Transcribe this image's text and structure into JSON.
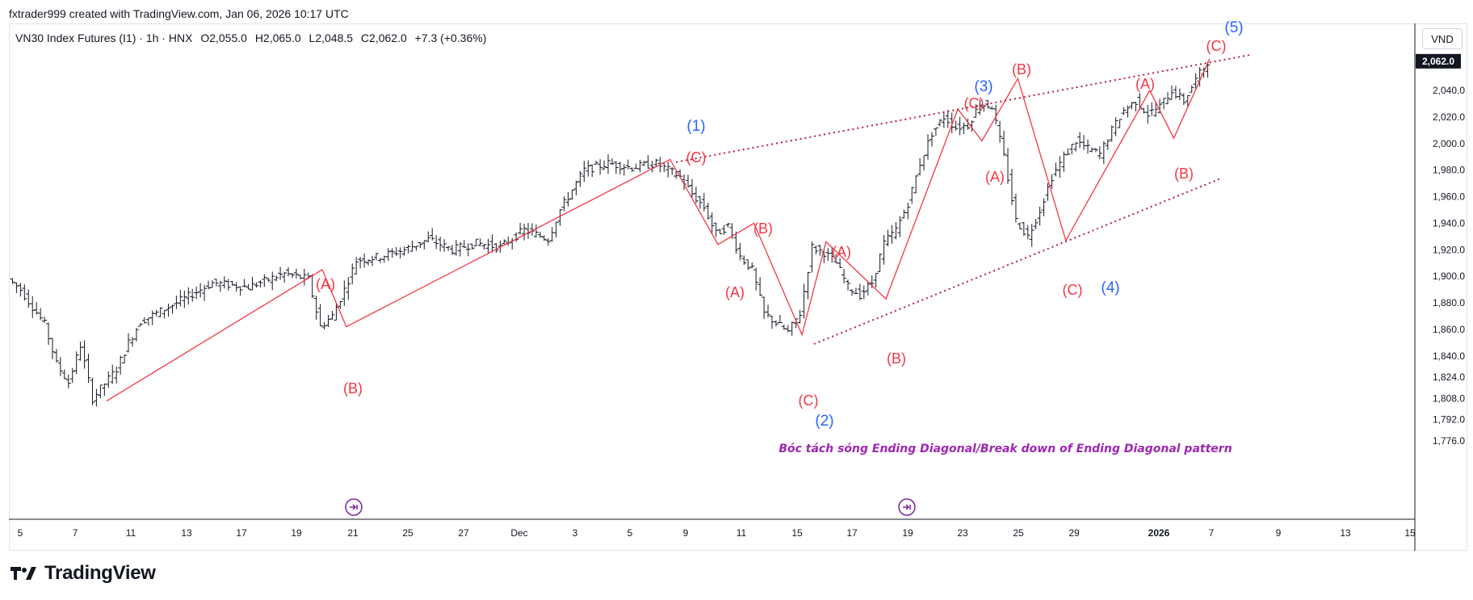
{
  "header": {
    "creator_line": "fxtrader999 created with TradingView.com, Jan 06, 2026 10:17 UTC"
  },
  "legend": {
    "symbol": "VN30 Index Futures (I1) · 1h · HNX",
    "open": "O2,055.0",
    "high": "H2,065.0",
    "low": "L2,048.5",
    "close": "C2,062.0",
    "change": "+7.3 (+0.36%)"
  },
  "currency": "VND",
  "last_price": "2,062.0",
  "footer": {
    "brand": "TradingView"
  },
  "colors": {
    "candle": "#131722",
    "wave_red": "#f23645",
    "wave_blue": "#2962ff",
    "trend_dotted": "#b71c3c",
    "annotation": "#9c27b0",
    "price_label_bg": "#131722"
  },
  "chart_data": {
    "type": "ohlc",
    "title": "VN30 Index Futures (I1) · 1h · HNX",
    "y_axis": {
      "ticks": [
        1776.0,
        1792.0,
        1808.0,
        1824.0,
        1840.0,
        1860.0,
        1880.0,
        1900.0,
        1920.0,
        1940.0,
        1960.0,
        1980.0,
        2000.0,
        2020.0,
        2040.0
      ],
      "tick_labels": [
        "1,776.0",
        "1,792.0",
        "1,808.0",
        "1,824.0",
        "1,840.0",
        "1,860.0",
        "1,880.0",
        "1,900.0",
        "1,920.0",
        "1,940.0",
        "1,960.0",
        "1,980.0",
        "2,000.0",
        "2,020.0",
        "2,040.0"
      ],
      "position": "right"
    },
    "x_axis": {
      "ticks": [
        "5",
        "7",
        "11",
        "13",
        "17",
        "19",
        "21",
        "25",
        "27",
        "Dec",
        "3",
        "5",
        "9",
        "11",
        "15",
        "17",
        "19",
        "23",
        "25",
        "29",
        "2026",
        "7",
        "9",
        "13",
        "15"
      ]
    },
    "price_path": [
      [
        0,
        1898
      ],
      [
        1,
        1890
      ],
      [
        3,
        1864
      ],
      [
        4,
        1834
      ],
      [
        5,
        1820
      ],
      [
        6,
        1848
      ],
      [
        7,
        1808
      ],
      [
        9,
        1830
      ],
      [
        10,
        1850
      ],
      [
        11,
        1866
      ],
      [
        14,
        1880
      ],
      [
        17,
        1895
      ],
      [
        20,
        1892
      ],
      [
        23,
        1902
      ],
      [
        25,
        1898
      ],
      [
        26,
        1862
      ],
      [
        27,
        1870
      ],
      [
        28,
        1890
      ],
      [
        29,
        1912
      ],
      [
        31,
        1915
      ],
      [
        33,
        1920
      ],
      [
        35,
        1928
      ],
      [
        37,
        1920
      ],
      [
        39,
        1925
      ],
      [
        41,
        1922
      ],
      [
        43,
        1935
      ],
      [
        45,
        1928
      ],
      [
        46,
        1950
      ],
      [
        47,
        1965
      ],
      [
        48,
        1980
      ],
      [
        50,
        1985
      ],
      [
        52,
        1982
      ],
      [
        54,
        1985
      ],
      [
        55,
        1980
      ],
      [
        56,
        1975
      ],
      [
        57,
        1962
      ],
      [
        58,
        1952
      ],
      [
        59,
        1932
      ],
      [
        60,
        1938
      ],
      [
        61,
        1915
      ],
      [
        62,
        1905
      ],
      [
        63,
        1872
      ],
      [
        64,
        1865
      ],
      [
        65,
        1858
      ],
      [
        66,
        1872
      ],
      [
        67,
        1922
      ],
      [
        68,
        1918
      ],
      [
        69,
        1910
      ],
      [
        70,
        1892
      ],
      [
        71,
        1886
      ],
      [
        72,
        1895
      ],
      [
        73,
        1925
      ],
      [
        74,
        1935
      ],
      [
        75,
        1955
      ],
      [
        76,
        1985
      ],
      [
        77,
        2008
      ],
      [
        78,
        2020
      ],
      [
        79,
        2012
      ],
      [
        80,
        2014
      ],
      [
        81,
        2030
      ],
      [
        82,
        2028
      ],
      [
        83,
        1990
      ],
      [
        84,
        1942
      ],
      [
        85,
        1930
      ],
      [
        86,
        1950
      ],
      [
        87,
        1975
      ],
      [
        88,
        1990
      ],
      [
        89,
        2002
      ],
      [
        90,
        1996
      ],
      [
        91,
        1992
      ],
      [
        92,
        2010
      ],
      [
        93,
        2025
      ],
      [
        94,
        2032
      ],
      [
        95,
        2022
      ],
      [
        96,
        2028
      ],
      [
        97,
        2040
      ],
      [
        98,
        2032
      ],
      [
        99,
        2048
      ],
      [
        100,
        2062
      ]
    ],
    "last_price": 2062.0,
    "wave_labels": [
      {
        "text": "(A)",
        "color": "red",
        "x_bar": 26,
        "price": 1905
      },
      {
        "text": "(B)",
        "color": "red",
        "x_bar": 28,
        "price": 1862
      },
      {
        "text": "(1)",
        "color": "blue",
        "x_bar": 55,
        "price": 2004
      },
      {
        "text": "(C)",
        "color": "red",
        "x_bar": 55,
        "price": 1985
      },
      {
        "text": "(B)",
        "color": "red",
        "x_bar": 62,
        "price": 1942
      },
      {
        "text": "(A)",
        "color": "red",
        "x_bar": 59,
        "price": 1926
      },
      {
        "text": "(C)",
        "color": "red",
        "x_bar": 66,
        "price": 1858
      },
      {
        "text": "(2)",
        "color": "blue",
        "x_bar": 67,
        "price": 1858
      },
      {
        "text": "(A)",
        "color": "red",
        "x_bar": 68,
        "price": 1926
      },
      {
        "text": "(B)",
        "color": "red",
        "x_bar": 73,
        "price": 1885
      },
      {
        "text": "(C)",
        "color": "red",
        "x_bar": 79,
        "price": 2024
      },
      {
        "text": "(3)",
        "color": "blue",
        "x_bar": 80,
        "price": 2034
      },
      {
        "text": "(A)",
        "color": "red",
        "x_bar": 81,
        "price": 2005
      },
      {
        "text": "(B)",
        "color": "red",
        "x_bar": 84,
        "price": 2048
      },
      {
        "text": "(C)",
        "color": "red",
        "x_bar": 88,
        "price": 1930
      },
      {
        "text": "(4)",
        "color": "blue",
        "x_bar": 91,
        "price": 1930
      },
      {
        "text": "(A)",
        "color": "red",
        "x_bar": 95,
        "price": 2040
      },
      {
        "text": "(B)",
        "color": "red",
        "x_bar": 97,
        "price": 2002
      },
      {
        "text": "(C)",
        "color": "red",
        "x_bar": 100,
        "price": 2062
      },
      {
        "text": "(5)",
        "color": "blue",
        "x_bar": 101,
        "price": 2062
      }
    ],
    "annotation": "Bóc tách sóng Ending Diagonal/Break down of Ending Diagonal pattern"
  }
}
